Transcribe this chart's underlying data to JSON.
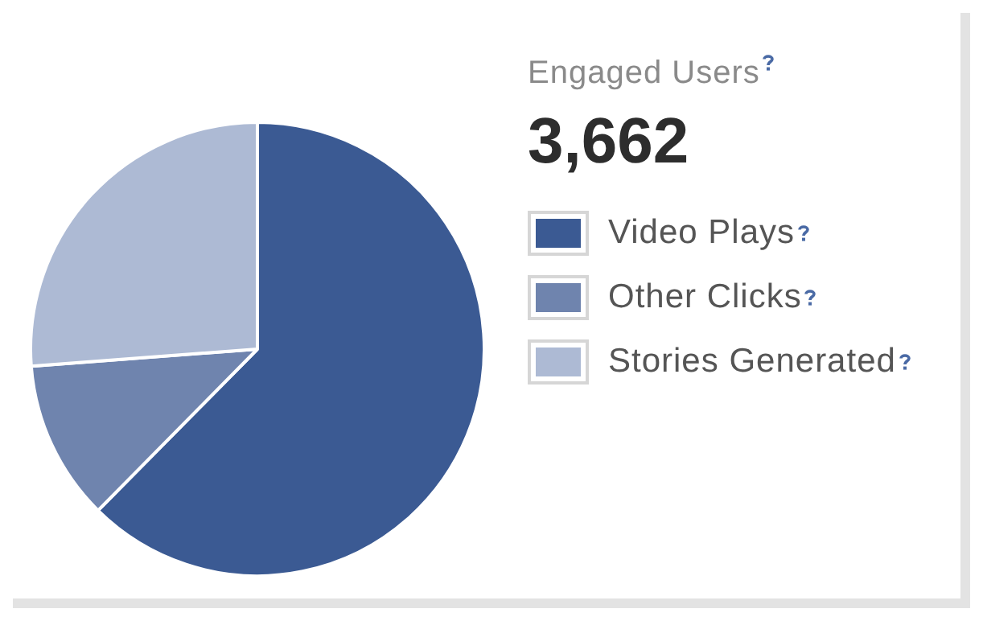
{
  "chart_data": {
    "type": "pie",
    "title": "Engaged Users",
    "subtitle": "3,662",
    "categories": [
      "Video Plays",
      "Other Clicks",
      "Stories Generated"
    ],
    "values": [
      62.4,
      11.4,
      26.2
    ],
    "colors": [
      "#3b5a93",
      "#6f84ae",
      "#adbad4"
    ],
    "legend": "right"
  }
}
